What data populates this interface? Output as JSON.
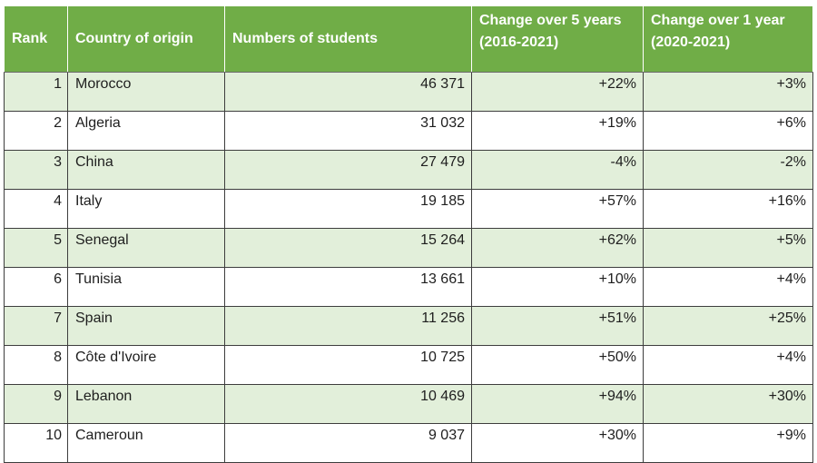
{
  "table": {
    "headers": {
      "rank": "Rank",
      "country": "Country of origin",
      "students": "Numbers of students",
      "change5": "Change over 5 years (2016-2021)",
      "change1": "Change over 1 year (2020-2021)"
    },
    "rows": [
      {
        "rank": "1",
        "country": "Morocco",
        "students": "46 371",
        "change5": "+22%",
        "change1": "+3%"
      },
      {
        "rank": "2",
        "country": "Algeria",
        "students": "31 032",
        "change5": "+19%",
        "change1": "+6%"
      },
      {
        "rank": "3",
        "country": "China",
        "students": "27 479",
        "change5": "-4%",
        "change1": "-2%"
      },
      {
        "rank": "4",
        "country": "Italy",
        "students": "19 185",
        "change5": "+57%",
        "change1": "+16%"
      },
      {
        "rank": "5",
        "country": "Senegal",
        "students": "15 264",
        "change5": "+62%",
        "change1": "+5%"
      },
      {
        "rank": "6",
        "country": "Tunisia",
        "students": "13 661",
        "change5": "+10%",
        "change1": "+4%"
      },
      {
        "rank": "7",
        "country": "Spain",
        "students": "11 256",
        "change5": "+51%",
        "change1": "+25%"
      },
      {
        "rank": "8",
        "country": "Côte d'Ivoire",
        "students": "10 725",
        "change5": "+50%",
        "change1": "+4%"
      },
      {
        "rank": "9",
        "country": "Lebanon",
        "students": "10 469",
        "change5": "+94%",
        "change1": "+30%"
      },
      {
        "rank": "10",
        "country": "Cameroun",
        "students": "9 037",
        "change5": "+30%",
        "change1": "+9%"
      }
    ]
  },
  "colors": {
    "header_bg": "#70ad47",
    "header_text": "#ffffff",
    "band_bg": "#e2efda",
    "plain_bg": "#ffffff"
  }
}
